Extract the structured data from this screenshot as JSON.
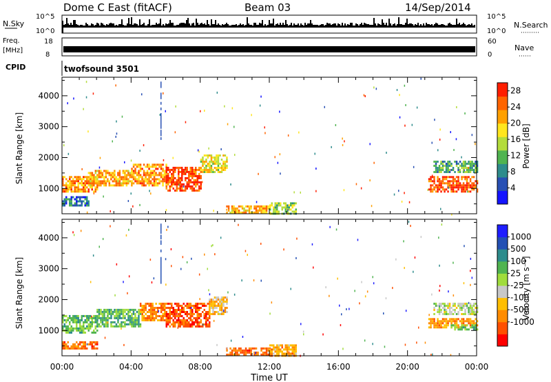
{
  "header": {
    "station": "Dome C East (fitACF)",
    "beam": "Beam 03",
    "date": "14/Sep/2014"
  },
  "strips": {
    "nsky_label": "N.Sky",
    "nsky_ticks": [
      "10^5",
      "10^0"
    ],
    "nsearch_label": "N.Search",
    "nsearch_ticks": [
      "10^5",
      "10^0"
    ],
    "freq_label": "Freq.",
    "freq_unit": "[MHz]",
    "freq_ticks": [
      "18",
      "8"
    ],
    "nave_label": "Nave",
    "nave_ticks": [
      "60",
      "0"
    ],
    "cpid_label": "CPID",
    "cpid_value": "twofsound 3501"
  },
  "chart_data": [
    {
      "type": "heatmap",
      "panel": "power",
      "ylabel": "Slant Range [km]",
      "xlabel": "",
      "x_ticks": [
        "00:00",
        "04:00",
        "08:00",
        "12:00",
        "16:00",
        "20:00",
        "00:00"
      ],
      "xlim_hours": [
        0,
        24
      ],
      "y_ticks": [
        1000,
        2000,
        3000,
        4000
      ],
      "ylim": [
        180,
        4600
      ],
      "colorbar_label": "Power [dB]",
      "colorbar_ticks": [
        "28",
        "24",
        "20",
        "16",
        "12",
        "8",
        "4"
      ],
      "colorbar_range": [
        0,
        30
      ],
      "colors": [
        "#1414ff",
        "#2850b4",
        "#2e8c8c",
        "#50b450",
        "#b4dc3c",
        "#ffe61e",
        "#ffa000",
        "#ff6400",
        "#ff1e00"
      ],
      "regions": [
        {
          "x": [
            0.0,
            2.0
          ],
          "y": [
            900,
            1400
          ],
          "level": 0.75
        },
        {
          "x": [
            0.0,
            1.5
          ],
          "y": [
            450,
            750
          ],
          "level": 0.25
        },
        {
          "x": [
            1.5,
            4.0
          ],
          "y": [
            1100,
            1600
          ],
          "level": 0.7
        },
        {
          "x": [
            4.0,
            6.0
          ],
          "y": [
            1100,
            1800
          ],
          "level": 0.75
        },
        {
          "x": [
            6.0,
            8.0
          ],
          "y": [
            900,
            1700
          ],
          "level": 0.9
        },
        {
          "x": [
            8.0,
            9.5
          ],
          "y": [
            1500,
            2100
          ],
          "level": 0.6
        },
        {
          "x": [
            9.5,
            12.0
          ],
          "y": [
            200,
            450
          ],
          "level": 0.7
        },
        {
          "x": [
            12.0,
            13.5
          ],
          "y": [
            200,
            550
          ],
          "level": 0.45
        },
        {
          "x": [
            21.2,
            24.0
          ],
          "y": [
            900,
            1400
          ],
          "level": 0.85
        },
        {
          "x": [
            21.5,
            24.0
          ],
          "y": [
            1500,
            1900
          ],
          "level": 0.35
        }
      ]
    },
    {
      "type": "heatmap",
      "panel": "velocity",
      "ylabel": "Slant Range [km]",
      "xlabel": "Time UT",
      "x_ticks": [
        "00:00",
        "04:00",
        "08:00",
        "12:00",
        "16:00",
        "20:00",
        "00:00"
      ],
      "xlim_hours": [
        0,
        24
      ],
      "y_ticks": [
        1000,
        2000,
        3000,
        4000
      ],
      "ylim": [
        180,
        4600
      ],
      "colorbar_label": "Velocity [m s⁻¹]",
      "colorbar_ticks": [
        "1000",
        "500",
        "100",
        "25",
        "-25",
        "-100",
        "-500",
        "-1000"
      ],
      "colorbar_range": [
        -1000,
        1000
      ],
      "colors": [
        "#ff0000",
        "#ff5000",
        "#ff8c00",
        "#ffbe00",
        "#c8c8c8",
        "#a0dc3c",
        "#50b450",
        "#2d8c8c",
        "#2350b4",
        "#1e1eff"
      ],
      "regions": [
        {
          "x": [
            0.0,
            2.0
          ],
          "y": [
            900,
            1500
          ],
          "level": 0.25
        },
        {
          "x": [
            0.0,
            2.0
          ],
          "y": [
            400,
            650
          ],
          "level": -0.6
        },
        {
          "x": [
            2.0,
            4.5
          ],
          "y": [
            1100,
            1700
          ],
          "level": 0.3
        },
        {
          "x": [
            4.5,
            6.0
          ],
          "y": [
            1300,
            1900
          ],
          "level": -0.5
        },
        {
          "x": [
            6.0,
            8.5
          ],
          "y": [
            1100,
            1900
          ],
          "level": -0.7
        },
        {
          "x": [
            8.5,
            9.5
          ],
          "y": [
            1500,
            2100
          ],
          "level": -0.3
        },
        {
          "x": [
            9.5,
            12.0
          ],
          "y": [
            200,
            450
          ],
          "level": -0.6
        },
        {
          "x": [
            12.0,
            13.5
          ],
          "y": [
            200,
            550
          ],
          "level": -0.4
        },
        {
          "x": [
            21.2,
            24.0
          ],
          "y": [
            1100,
            1400
          ],
          "level": -0.45
        },
        {
          "x": [
            22.5,
            24.0
          ],
          "y": [
            1000,
            1200
          ],
          "level": 0.25
        },
        {
          "x": [
            21.5,
            24.0
          ],
          "y": [
            1500,
            1900
          ],
          "level": 0.0
        }
      ]
    }
  ]
}
